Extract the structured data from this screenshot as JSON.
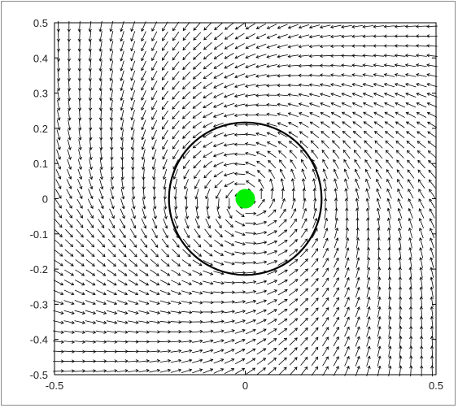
{
  "chart_data": {
    "type": "quiver",
    "title": "",
    "xlabel": "",
    "ylabel": "",
    "xlim": [
      -0.5,
      0.5
    ],
    "ylim": [
      -0.5,
      0.5
    ],
    "xticks": [
      -0.5,
      0,
      0.5
    ],
    "xtick_labels": [
      "-0.5",
      "0",
      "0.5"
    ],
    "yticks": [
      0.5,
      0.4,
      0.3,
      0.2,
      0.1,
      0,
      -0.1,
      -0.2,
      -0.3,
      -0.4,
      -0.5
    ],
    "ytick_labels": [
      "0.5",
      "0.4",
      "0.3",
      "0.2",
      "0.1",
      "0",
      "-0.1",
      "-0.2",
      "-0.3",
      "-0.4",
      "-0.5"
    ],
    "grid": false,
    "legend": "none",
    "vector_field": {
      "grid_min": -0.49,
      "grid_max": 0.49,
      "grid_count": 36,
      "rotation": "counterclockwise",
      "radial_below_circle": "inward",
      "radial_above_circle": "outward"
    },
    "circle": {
      "center": [
        0,
        0
      ],
      "radius": 0.2,
      "color": "#000000"
    },
    "point": {
      "x": 0,
      "y": 0,
      "color": "#00ee00"
    },
    "colors": {
      "arrows": "#000000",
      "axes": "#000000"
    }
  }
}
